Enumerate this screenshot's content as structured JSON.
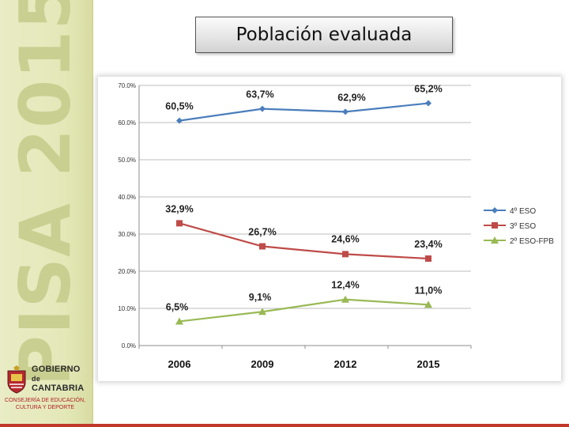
{
  "slide": {
    "title": "Población evaluada",
    "sidebar_logo_text": "PISA 2015",
    "government": {
      "line1": "GOBIERNO",
      "line2": "de",
      "line3": "CANTABRIA",
      "department_line1": "CONSEJERÍA DE EDUCACIÓN,",
      "department_line2": "CULTURA Y DEPORTE"
    }
  },
  "colors": {
    "series_blue": "#4a7ebb",
    "series_red": "#be4b48",
    "series_green": "#98b954",
    "sidebar": "#e4e8b8"
  },
  "chart_data": {
    "type": "line",
    "title": "",
    "xlabel": "",
    "ylabel": "",
    "categories": [
      "2006",
      "2009",
      "2012",
      "2015"
    ],
    "ylim": [
      0,
      70
    ],
    "yticks": [
      0,
      10,
      20,
      30,
      40,
      50,
      60,
      70
    ],
    "ytick_labels": [
      "0.0%",
      "10.0%",
      "20.0%",
      "30.0%",
      "40.0%",
      "50.0%",
      "60.0%",
      "70.0%"
    ],
    "grid": true,
    "legend_position": "right",
    "series": [
      {
        "name": "4º ESO",
        "color": "#4a7ebb",
        "marker": "diamond",
        "values": [
          60.5,
          63.7,
          62.9,
          65.2
        ],
        "labels": [
          "60,5%",
          "63,7%",
          "62,9%",
          "65,2%"
        ]
      },
      {
        "name": "3º ESO",
        "color": "#be4b48",
        "marker": "square",
        "values": [
          32.9,
          26.7,
          24.6,
          23.4
        ],
        "labels": [
          "32,9%",
          "26,7%",
          "24,6%",
          "23,4%"
        ]
      },
      {
        "name": "2º ESO-FPB",
        "color": "#98b954",
        "marker": "triangle",
        "values": [
          6.5,
          9.1,
          12.4,
          11.0
        ],
        "labels": [
          "6,5%",
          "9,1%",
          "12,4%",
          "11,0%"
        ]
      }
    ]
  }
}
